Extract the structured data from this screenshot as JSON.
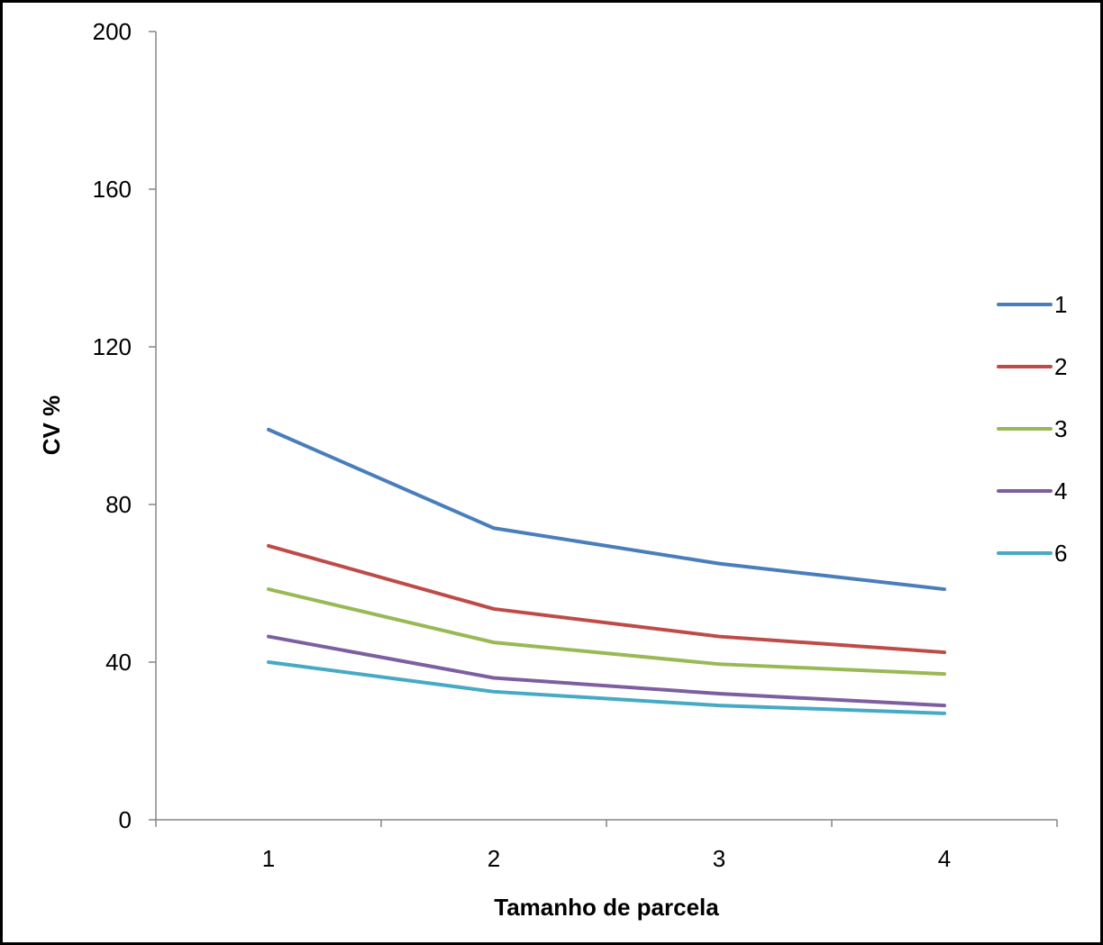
{
  "chart_data": {
    "type": "line",
    "title": "",
    "xlabel": "Tamanho de parcela",
    "ylabel": "CV %",
    "categories": [
      "1",
      "2",
      "3",
      "4"
    ],
    "ylim": [
      0,
      200
    ],
    "yticks": [
      "0",
      "40",
      "80",
      "120",
      "160",
      "200"
    ],
    "grid": false,
    "legend_position": "right",
    "series": [
      {
        "name": "1",
        "color": "#4A7EBB",
        "values": [
          99,
          74,
          65,
          58.5
        ]
      },
      {
        "name": "2",
        "color": "#BE4B48",
        "values": [
          69.5,
          53.5,
          46.5,
          42.5
        ]
      },
      {
        "name": "3",
        "color": "#98B954",
        "values": [
          58.5,
          45,
          39.5,
          37
        ]
      },
      {
        "name": "4",
        "color": "#7D5FA0",
        "values": [
          46.5,
          36,
          32,
          29
        ]
      },
      {
        "name": "6",
        "color": "#46AAC5",
        "values": [
          40,
          32.5,
          29,
          27
        ]
      }
    ]
  }
}
